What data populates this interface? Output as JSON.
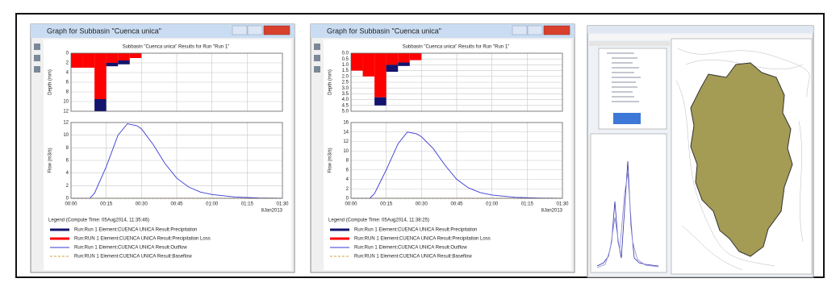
{
  "windows": [
    {
      "title": "Graph for Subbasin \"Cuenca unica\"",
      "chart_title": "Subbasin \"Cuenca unica\" Results for Run \"Run 1\"",
      "xlim": [
        0,
        90
      ],
      "xticks": [
        {
          "value": 0,
          "label": "00:00"
        },
        {
          "value": 15,
          "label": "00:15"
        },
        {
          "value": 30,
          "label": "00:30"
        },
        {
          "value": 45,
          "label": "00:45"
        },
        {
          "value": 60,
          "label": "01:00"
        },
        {
          "value": 75,
          "label": "01:15"
        },
        {
          "value": 90,
          "label": "01:30"
        }
      ],
      "date_label": "8Jan2013",
      "hyetograph": {
        "y_label": "Depth (mm)",
        "ylim": [
          0,
          12
        ],
        "yticks": [
          0,
          2,
          4,
          6,
          8,
          10,
          12
        ],
        "bins": [
          0,
          5,
          10,
          15,
          20,
          25,
          30
        ],
        "series": [
          {
            "name": "Run:Run 1 Element:CUENCA UNICA Result:Precipitation",
            "color": "#14146e",
            "values": [
              0,
              0,
              2.5,
              0.7,
              0.8,
              0
            ]
          },
          {
            "name": "Run:RUN 1 Element:CUENCA UNICA Result:Precipitation Loss",
            "color": "#ff0000",
            "values": [
              3,
              3,
              9.5,
              2,
              1.5,
              1
            ]
          }
        ]
      },
      "hydrograph": {
        "y_label": "Flow (m3/s)",
        "ylim": [
          0,
          12
        ],
        "yticks": [
          0,
          2,
          4,
          6,
          8,
          10,
          12
        ],
        "x": [
          0,
          5,
          8,
          10,
          15,
          20,
          24,
          28,
          30,
          35,
          40,
          45,
          50,
          55,
          60,
          70,
          80,
          90
        ],
        "series": [
          {
            "name": "Run:Run 1 Element:CUENCA UNICA Result:Outflow",
            "color": "#3a3ad6",
            "style": "solid",
            "values": [
              0,
              0,
              0,
              0.8,
              5,
              10,
              11.8,
              11.5,
              11,
              8.5,
              5.5,
              3.2,
              1.8,
              1,
              0.6,
              0.2,
              0.05,
              0
            ]
          },
          {
            "name": "Run:RUN 1 Element:CUENCA UNICA Result:Baseflow",
            "color": "#c8a040",
            "style": "dashed",
            "values": [
              0,
              0,
              0,
              0,
              0,
              0,
              0,
              0,
              0,
              0,
              0,
              0,
              0,
              0,
              0,
              0,
              0,
              0
            ]
          }
        ]
      },
      "legend_title": "Legend (Compute Time: 05Aug2014, 11:35:46)"
    },
    {
      "title": "Graph for Subbasin \"Cuenca unica\"",
      "chart_title": "Subbasin \"Cuenca unica\" Results for Run \"Run 1\"",
      "xlim": [
        0,
        90
      ],
      "xticks": [
        {
          "value": 0,
          "label": "00:00"
        },
        {
          "value": 15,
          "label": "00:15"
        },
        {
          "value": 30,
          "label": "00:30"
        },
        {
          "value": 45,
          "label": "00:45"
        },
        {
          "value": 60,
          "label": "01:00"
        },
        {
          "value": 75,
          "label": "01:15"
        },
        {
          "value": 90,
          "label": "01:30"
        }
      ],
      "date_label": "8Jan2013",
      "hyetograph": {
        "y_label": "Depth (mm)",
        "ylim": [
          0,
          5
        ],
        "yticks": [
          {
            "value": 0,
            "label": "0.0"
          },
          {
            "value": 0.5,
            "label": "0.5"
          },
          {
            "value": 1,
            "label": "1.0"
          },
          {
            "value": 1.5,
            "label": "1.5"
          },
          {
            "value": 2,
            "label": "2.0"
          },
          {
            "value": 2.5,
            "label": "2.5"
          },
          {
            "value": 3,
            "label": "3.0"
          },
          {
            "value": 3.5,
            "label": "3.5"
          },
          {
            "value": 4,
            "label": "4.0"
          },
          {
            "value": 4.5,
            "label": "4.5"
          },
          {
            "value": 5,
            "label": "5.0"
          }
        ],
        "bins": [
          0,
          5,
          10,
          15,
          20,
          25,
          30
        ],
        "series": [
          {
            "name": "Run:Run 1 Element:CUENCA UNICA Result:Precipitation",
            "color": "#14146e",
            "values": [
              0,
              0,
              0.7,
              0.6,
              0.3,
              0
            ]
          },
          {
            "name": "Run:RUN 1 Element:CUENCA UNICA Result:Precipitation Loss",
            "color": "#ff0000",
            "values": [
              1.5,
              2,
              3.8,
              1,
              0.8,
              0.6
            ]
          }
        ]
      },
      "hydrograph": {
        "y_label": "Flow (m3/s)",
        "ylim": [
          0,
          16
        ],
        "yticks": [
          0,
          2,
          4,
          6,
          8,
          10,
          12,
          14,
          16
        ],
        "x": [
          0,
          5,
          8,
          10,
          15,
          20,
          24,
          28,
          30,
          35,
          40,
          45,
          50,
          55,
          60,
          70,
          80,
          90
        ],
        "series": [
          {
            "name": "Run:Run 1 Element:CUENCA UNICA Result:Outflow",
            "color": "#3a3ad6",
            "style": "solid",
            "values": [
              0,
              0,
              0,
              1,
              6,
              11.5,
              14,
              13.6,
              13,
              10.5,
              7,
              4,
              2.2,
              1.2,
              0.7,
              0.2,
              0.05,
              0
            ]
          },
          {
            "name": "Run:RUN 1 Element:CUENCA UNICA Result:Baseflow",
            "color": "#c8a040",
            "style": "dashed",
            "values": [
              0,
              0,
              0,
              0,
              0,
              0,
              0,
              0,
              0,
              0,
              0,
              0,
              0,
              0,
              0,
              0,
              0,
              0
            ]
          }
        ]
      },
      "legend_title": "Legend (Compute Time: 05Aug2014, 11:38:25)"
    }
  ]
}
